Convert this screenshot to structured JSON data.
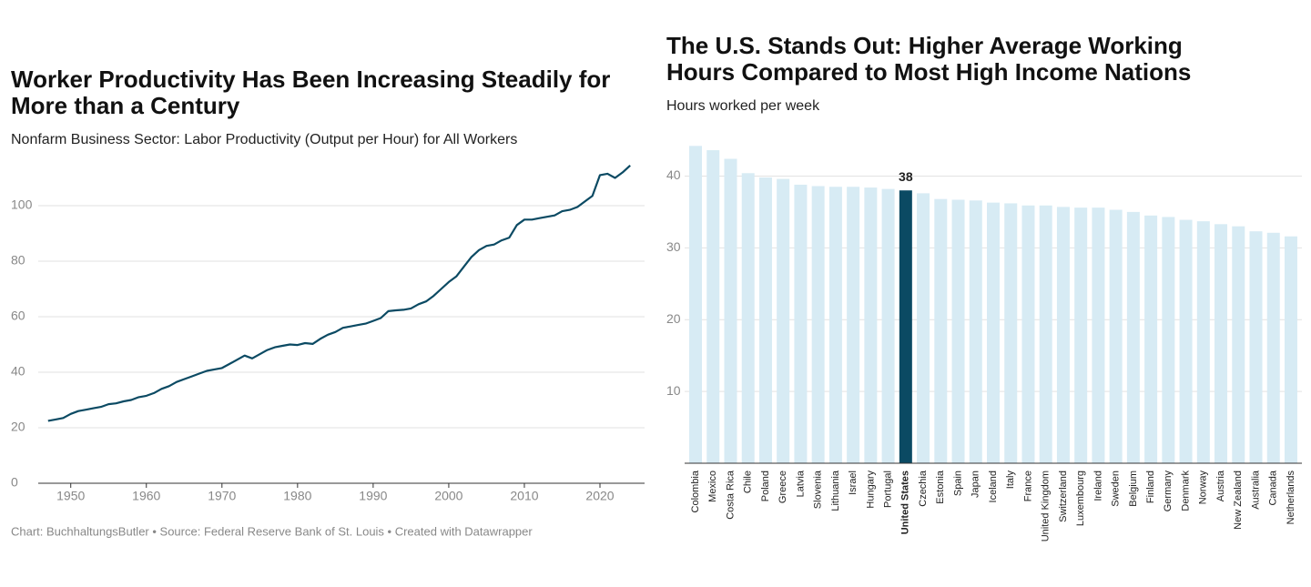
{
  "chart_data": [
    {
      "type": "line",
      "title": "Worker Productivity Has Been Increasing Steadily for More than a Century",
      "subtitle": "Nonfarm Business Sector: Labor Productivity (Output per Hour) for All Workers",
      "source": "Chart: BuchhaltungsButler • Source: Federal Reserve Bank of St. Louis • Created with Datawrapper",
      "x": [
        1947,
        1948,
        1949,
        1950,
        1951,
        1952,
        1953,
        1954,
        1955,
        1956,
        1957,
        1958,
        1959,
        1960,
        1961,
        1962,
        1963,
        1964,
        1965,
        1966,
        1967,
        1968,
        1969,
        1970,
        1971,
        1972,
        1973,
        1974,
        1975,
        1976,
        1977,
        1978,
        1979,
        1980,
        1981,
        1982,
        1983,
        1984,
        1985,
        1986,
        1987,
        1988,
        1989,
        1990,
        1991,
        1992,
        1993,
        1994,
        1995,
        1996,
        1997,
        1998,
        1999,
        2000,
        2001,
        2002,
        2003,
        2004,
        2005,
        2006,
        2007,
        2008,
        2009,
        2010,
        2011,
        2012,
        2013,
        2014,
        2015,
        2016,
        2017,
        2018,
        2019,
        2020,
        2021,
        2022,
        2023,
        2024
      ],
      "series": [
        {
          "name": "Labor Productivity",
          "color": "#0b4a63",
          "values": [
            22.5,
            23,
            23.5,
            25,
            26,
            26.5,
            27,
            27.5,
            28.5,
            28.8,
            29.5,
            30,
            31,
            31.5,
            32.5,
            34,
            35,
            36.5,
            37.5,
            38.5,
            39.5,
            40.5,
            41,
            41.5,
            43,
            44.5,
            46,
            45,
            46.5,
            48,
            49,
            49.5,
            50,
            49.8,
            50.5,
            50.2,
            52,
            53.5,
            54.5,
            56,
            56.5,
            57,
            57.5,
            58.5,
            59.5,
            62,
            62.3,
            62.5,
            63,
            64.5,
            65.5,
            67.5,
            70,
            72.5,
            74.5,
            78,
            81.5,
            84,
            85.5,
            86,
            87.5,
            88.5,
            93,
            95,
            95,
            95.5,
            96,
            96.5,
            98,
            98.5,
            99.5,
            101.5,
            103.5,
            111,
            111.5,
            110,
            112,
            114.5
          ]
        }
      ],
      "xlim": [
        1945.7,
        2025.9
      ],
      "xticks": [
        1950,
        1960,
        1970,
        1980,
        1990,
        2000,
        2010,
        2020
      ],
      "ylim": [
        0,
        120
      ],
      "yticks": [
        0,
        20,
        40,
        60,
        80,
        100
      ],
      "grid": true
    },
    {
      "type": "bar",
      "title": "The U.S. Stands Out: Higher Average Working Hours Compared to Most High Income Nations",
      "subtitle": "Hours worked per week",
      "categories": [
        "Colombia",
        "Mexico",
        "Costa Rica",
        "Chile",
        "Poland",
        "Greece",
        "Latvia",
        "Slovenia",
        "Lithuania",
        "Israel",
        "Hungary",
        "Portugal",
        "United States",
        "Czechia",
        "Estonia",
        "Spain",
        "Japan",
        "Iceland",
        "Italy",
        "France",
        "United Kingdom",
        "Switzerland",
        "Luxembourg",
        "Ireland",
        "Sweden",
        "Belgium",
        "Finland",
        "Germany",
        "Denmark",
        "Norway",
        "Austria",
        "New Zealand",
        "Australia",
        "Canada",
        "Netherlands"
      ],
      "values": [
        44.2,
        43.6,
        42.4,
        40.4,
        39.8,
        39.6,
        38.8,
        38.6,
        38.5,
        38.5,
        38.4,
        38.2,
        38,
        37.6,
        36.8,
        36.7,
        36.6,
        36.3,
        36.2,
        35.9,
        35.9,
        35.7,
        35.6,
        35.6,
        35.3,
        35.0,
        34.5,
        34.3,
        33.9,
        33.7,
        33.3,
        33.0,
        32.3,
        32.1,
        31.6
      ],
      "colors": [
        "#d7ebf4",
        "#d7ebf4",
        "#d7ebf4",
        "#d7ebf4",
        "#d7ebf4",
        "#d7ebf4",
        "#d7ebf4",
        "#d7ebf4",
        "#d7ebf4",
        "#d7ebf4",
        "#d7ebf4",
        "#d7ebf4",
        "#0b4a63",
        "#d7ebf4",
        "#d7ebf4",
        "#d7ebf4",
        "#d7ebf4",
        "#d7ebf4",
        "#d7ebf4",
        "#d7ebf4",
        "#d7ebf4",
        "#d7ebf4",
        "#d7ebf4",
        "#d7ebf4",
        "#d7ebf4",
        "#d7ebf4",
        "#d7ebf4",
        "#d7ebf4",
        "#d7ebf4",
        "#d7ebf4",
        "#d7ebf4",
        "#d7ebf4",
        "#d7ebf4",
        "#d7ebf4",
        "#d7ebf4"
      ],
      "labeled_bars": [
        12
      ],
      "ylim": [
        0,
        45
      ],
      "yticks": [
        10,
        20,
        30,
        40
      ],
      "grid": true
    }
  ]
}
